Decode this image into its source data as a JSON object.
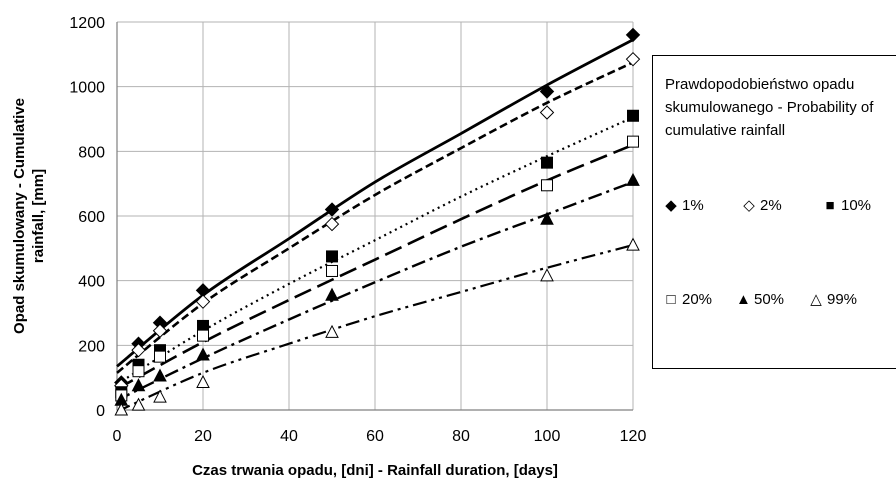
{
  "chart_data": {
    "type": "scatter",
    "title": "",
    "xlabel": "Czas trwania opadu, [dni] - Rainfall duration, [days]",
    "ylabel": "Opad skumulowany - Cumulative rainfall, [mm]",
    "xlim": [
      0,
      120
    ],
    "ylim": [
      0,
      1200
    ],
    "xticks": [
      "0",
      "20",
      "40",
      "60",
      "80",
      "100",
      "120"
    ],
    "yticks": [
      "0",
      "200",
      "400",
      "600",
      "800",
      "1000",
      "1200"
    ],
    "grid": true,
    "legend_position": "right",
    "legend_title": "Prawdopodobieństwo opadu skumulowanego - Probability of cumulative rainfall",
    "series": [
      {
        "name": "1%",
        "marker": "diamond-filled",
        "line": "solid",
        "x": [
          1,
          5,
          10,
          20,
          50,
          100,
          120
        ],
        "y": [
          85,
          205,
          270,
          370,
          620,
          985,
          1160
        ],
        "trend": [
          [
            0,
            135
          ],
          [
            20,
            355
          ],
          [
            40,
            530
          ],
          [
            60,
            705
          ],
          [
            80,
            855
          ],
          [
            100,
            1005
          ],
          [
            120,
            1145
          ]
        ]
      },
      {
        "name": "2%",
        "marker": "diamond-open",
        "line": "dash",
        "x": [
          1,
          5,
          10,
          20,
          50,
          100,
          120
        ],
        "y": [
          75,
          185,
          245,
          335,
          575,
          920,
          1085
        ],
        "trend": [
          [
            0,
            115
          ],
          [
            20,
            330
          ],
          [
            40,
            500
          ],
          [
            60,
            665
          ],
          [
            80,
            810
          ],
          [
            100,
            950
          ],
          [
            120,
            1075
          ]
        ]
      },
      {
        "name": "10%",
        "marker": "square-filled",
        "line": "dot",
        "x": [
          1,
          5,
          10,
          20,
          50,
          100,
          120
        ],
        "y": [
          55,
          140,
          185,
          260,
          475,
          765,
          910
        ],
        "trend": [
          [
            0,
            80
          ],
          [
            20,
            245
          ],
          [
            40,
            390
          ],
          [
            60,
            525
          ],
          [
            80,
            660
          ],
          [
            100,
            785
          ],
          [
            120,
            905
          ]
        ]
      },
      {
        "name": "20%",
        "marker": "square-open",
        "line": "longdash",
        "x": [
          1,
          5,
          10,
          20,
          50,
          100,
          120
        ],
        "y": [
          45,
          120,
          165,
          230,
          430,
          695,
          830
        ],
        "trend": [
          [
            0,
            65
          ],
          [
            20,
            210
          ],
          [
            40,
            340
          ],
          [
            60,
            465
          ],
          [
            80,
            590
          ],
          [
            100,
            710
          ],
          [
            120,
            820
          ]
        ]
      },
      {
        "name": "50%",
        "marker": "triangle-filled",
        "line": "dashdot",
        "x": [
          1,
          5,
          10,
          20,
          50,
          100,
          120
        ],
        "y": [
          30,
          75,
          105,
          170,
          355,
          590,
          710
        ],
        "trend": [
          [
            0,
            30
          ],
          [
            20,
            160
          ],
          [
            40,
            280
          ],
          [
            60,
            395
          ],
          [
            80,
            505
          ],
          [
            100,
            605
          ],
          [
            120,
            705
          ]
        ]
      },
      {
        "name": "99%",
        "marker": "triangle-open",
        "line": "dashdotdot",
        "x": [
          1,
          5,
          10,
          20,
          50,
          100,
          120
        ],
        "y": [
          0,
          15,
          40,
          85,
          240,
          415,
          510
        ],
        "trend": [
          [
            0,
            -5
          ],
          [
            20,
            115
          ],
          [
            40,
            205
          ],
          [
            60,
            290
          ],
          [
            80,
            365
          ],
          [
            100,
            440
          ],
          [
            120,
            510
          ]
        ]
      }
    ]
  },
  "legend": {
    "title": "Prawdopodobieństwo opadu skumulowanego - Probability of cumulative rainfall"
  }
}
